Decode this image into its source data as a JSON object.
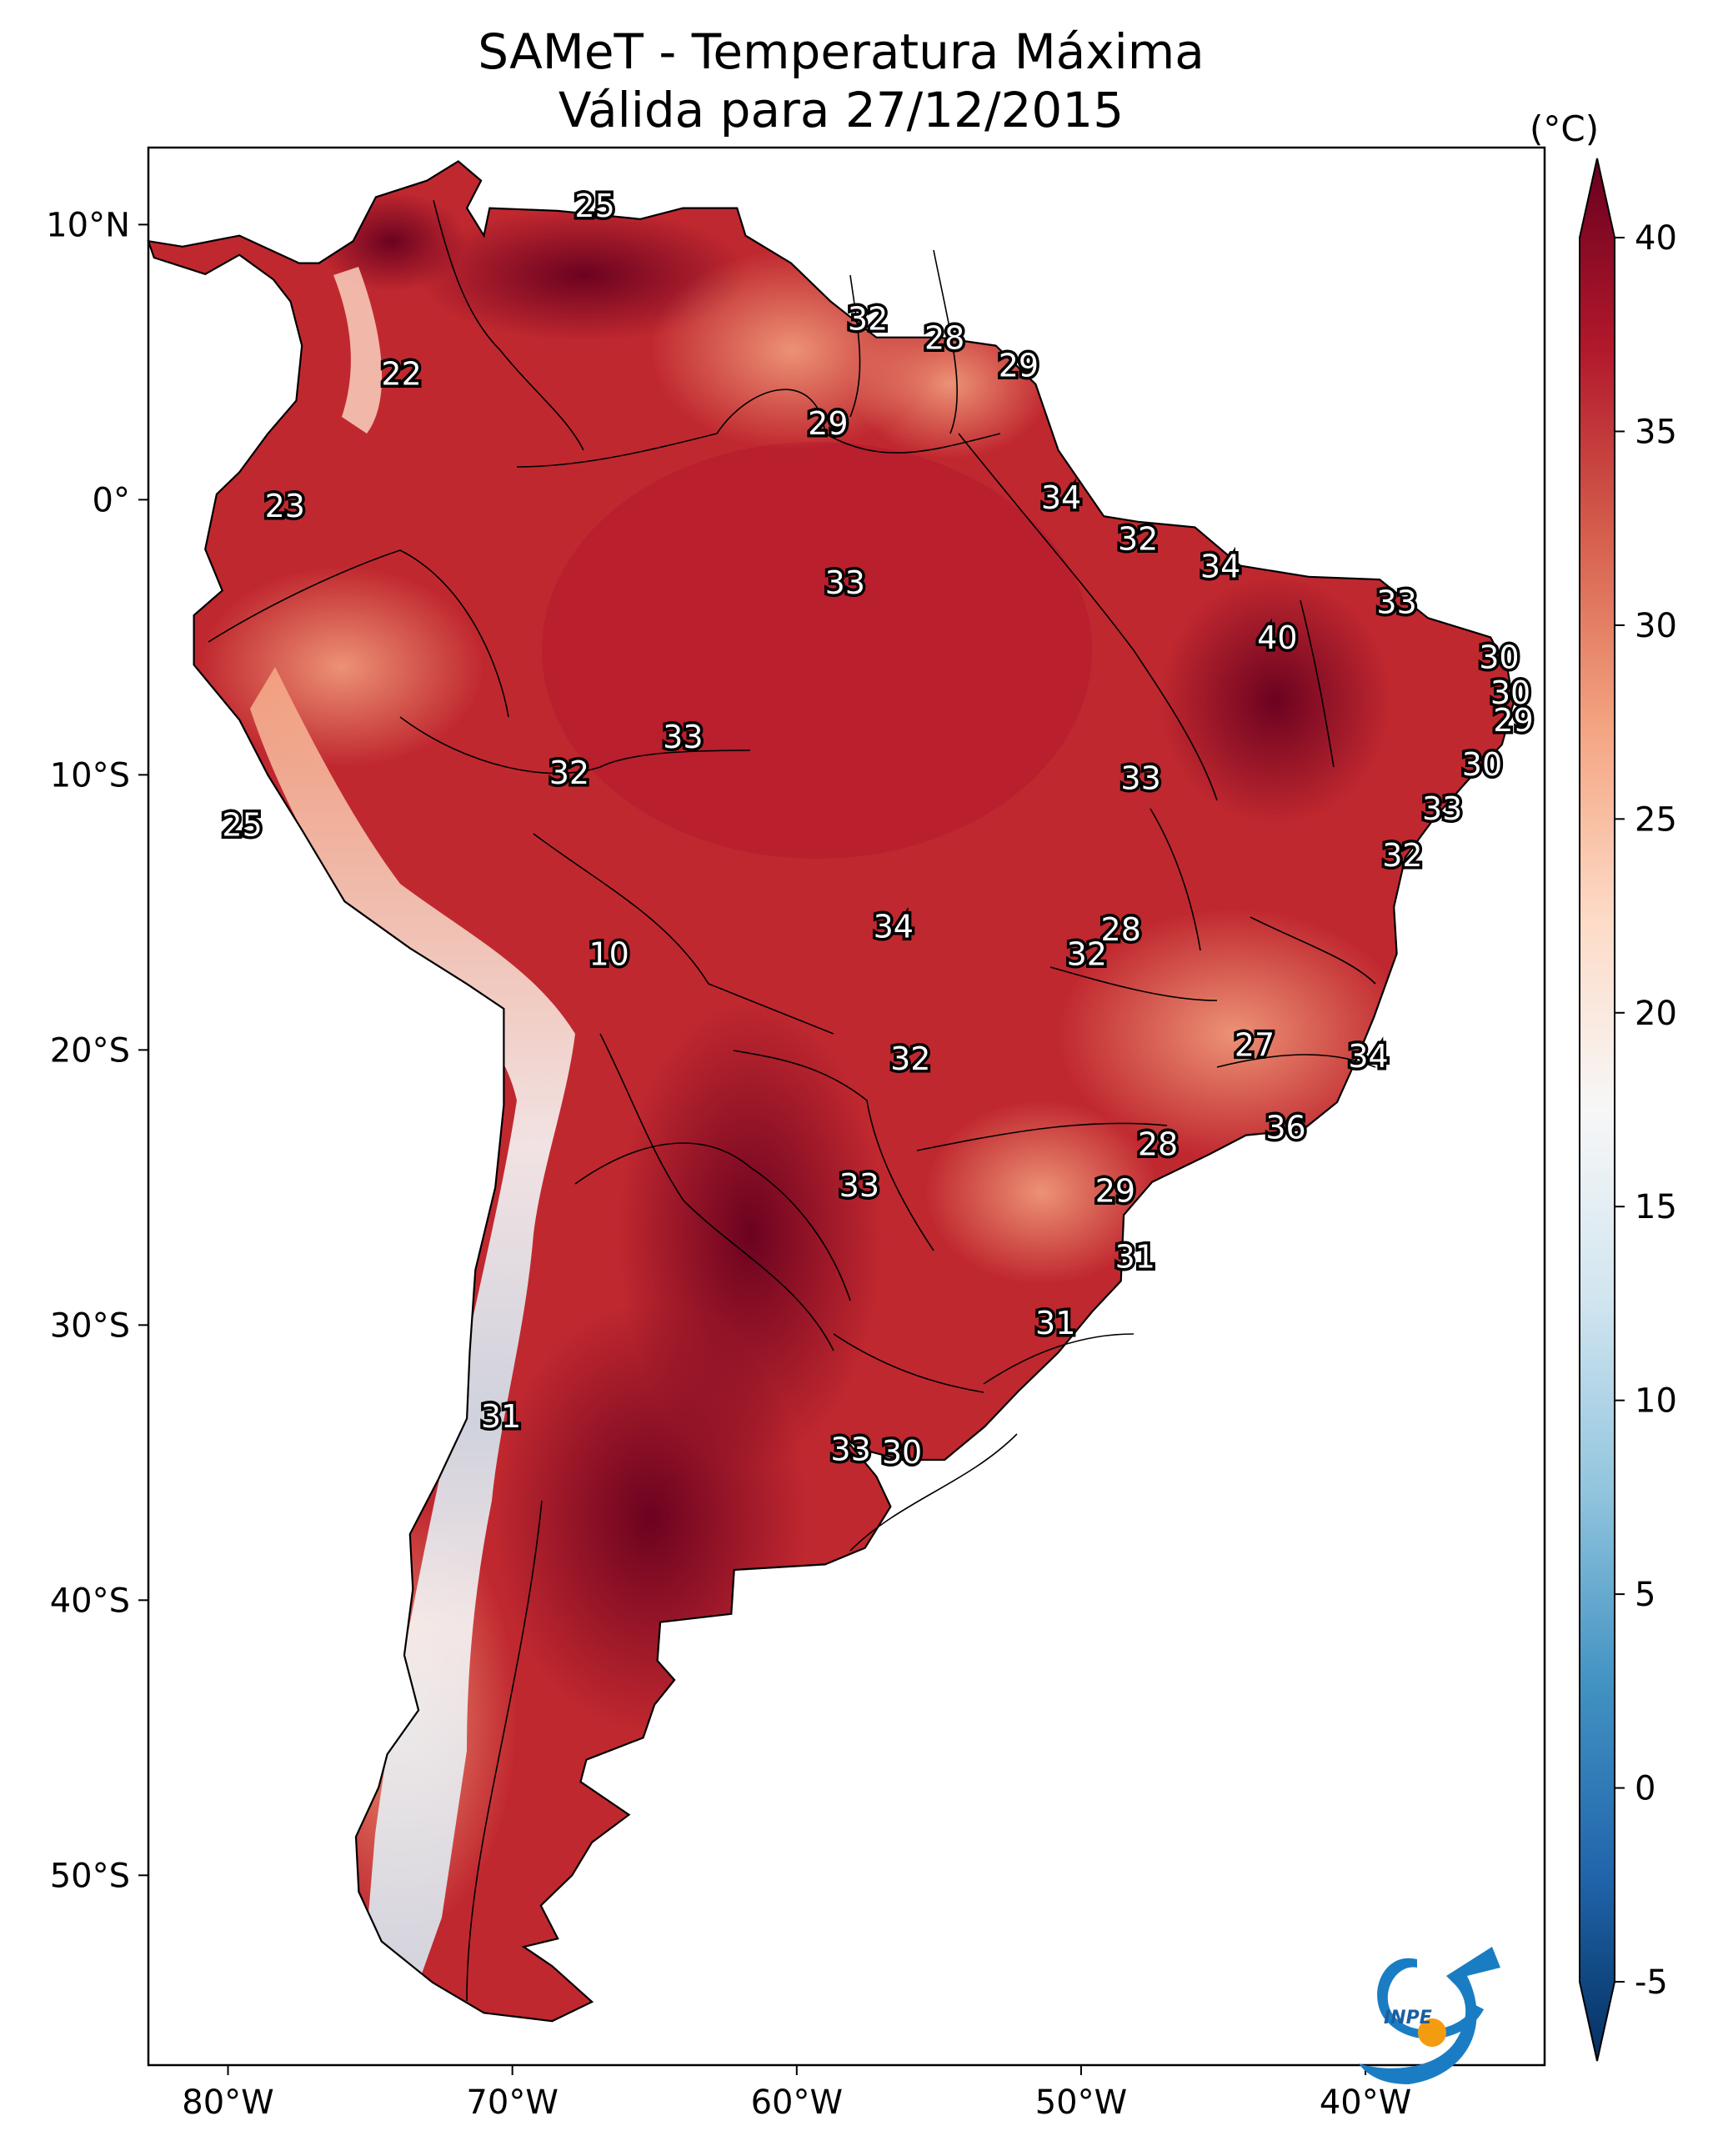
{
  "title": {
    "line1": "SAMeT - Temperatura Máxima",
    "line2": "Válida para 27/12/2015"
  },
  "map": {
    "lon_range": [
      -82.8,
      -33.7
    ],
    "lat_range": [
      -56.9,
      12.8
    ],
    "lon_ticks": [
      {
        "value": -80,
        "label": "80°W"
      },
      {
        "value": -70,
        "label": "70°W"
      },
      {
        "value": -60,
        "label": "60°W"
      },
      {
        "value": -50,
        "label": "50°W"
      },
      {
        "value": -40,
        "label": "40°W"
      }
    ],
    "lat_ticks": [
      {
        "value": 10,
        "label": "10°N"
      },
      {
        "value": 0,
        "label": "0°"
      },
      {
        "value": -10,
        "label": "10°S"
      },
      {
        "value": -20,
        "label": "20°S"
      },
      {
        "value": -30,
        "label": "30°S"
      },
      {
        "value": -40,
        "label": "40°S"
      },
      {
        "value": -50,
        "label": "50°S"
      }
    ],
    "labels": [
      {
        "lon": -67.1,
        "lat": 10.6,
        "text": "25"
      },
      {
        "lon": -57.5,
        "lat": 6.5,
        "text": "32"
      },
      {
        "lon": -54.8,
        "lat": 5.8,
        "text": "28"
      },
      {
        "lon": -52.2,
        "lat": 4.8,
        "text": "29"
      },
      {
        "lon": -73.9,
        "lat": 4.5,
        "text": "22"
      },
      {
        "lon": -58.9,
        "lat": 2.7,
        "text": "29"
      },
      {
        "lon": -50.7,
        "lat": 0.0,
        "text": "34"
      },
      {
        "lon": -78.0,
        "lat": -0.3,
        "text": "23"
      },
      {
        "lon": -48.0,
        "lat": -1.5,
        "text": "32"
      },
      {
        "lon": -45.1,
        "lat": -2.5,
        "text": "34"
      },
      {
        "lon": -38.9,
        "lat": -3.8,
        "text": "33"
      },
      {
        "lon": -58.3,
        "lat": -3.1,
        "text": "33"
      },
      {
        "lon": -43.1,
        "lat": -5.1,
        "text": "40"
      },
      {
        "lon": -35.3,
        "lat": -5.8,
        "text": "30"
      },
      {
        "lon": -34.9,
        "lat": -7.1,
        "text": "30"
      },
      {
        "lon": -34.8,
        "lat": -8.1,
        "text": "29"
      },
      {
        "lon": -35.9,
        "lat": -9.7,
        "text": "30"
      },
      {
        "lon": -64.0,
        "lat": -8.7,
        "text": "33"
      },
      {
        "lon": -68.0,
        "lat": -10.0,
        "text": "32"
      },
      {
        "lon": -47.9,
        "lat": -10.2,
        "text": "33"
      },
      {
        "lon": -37.3,
        "lat": -11.3,
        "text": "33"
      },
      {
        "lon": -79.5,
        "lat": -11.9,
        "text": "25"
      },
      {
        "lon": -38.7,
        "lat": -13.0,
        "text": "32"
      },
      {
        "lon": -66.6,
        "lat": -16.6,
        "text": "10"
      },
      {
        "lon": -56.6,
        "lat": -15.6,
        "text": "34"
      },
      {
        "lon": -48.6,
        "lat": -15.7,
        "text": "28"
      },
      {
        "lon": -49.8,
        "lat": -16.6,
        "text": "32"
      },
      {
        "lon": -43.9,
        "lat": -19.9,
        "text": "27"
      },
      {
        "lon": -39.9,
        "lat": -20.3,
        "text": "34"
      },
      {
        "lon": -56.0,
        "lat": -20.4,
        "text": "32"
      },
      {
        "lon": -42.8,
        "lat": -22.9,
        "text": "36"
      },
      {
        "lon": -47.3,
        "lat": -23.5,
        "text": "28"
      },
      {
        "lon": -57.8,
        "lat": -25.0,
        "text": "33"
      },
      {
        "lon": -48.8,
        "lat": -25.2,
        "text": "29"
      },
      {
        "lon": -48.1,
        "lat": -27.6,
        "text": "31"
      },
      {
        "lon": -50.9,
        "lat": -30.0,
        "text": "31"
      },
      {
        "lon": -70.4,
        "lat": -33.4,
        "text": "31"
      },
      {
        "lon": -58.1,
        "lat": -34.6,
        "text": "33"
      },
      {
        "lon": -56.3,
        "lat": -34.7,
        "text": "30"
      }
    ]
  },
  "colorbar": {
    "unit": "(°C)",
    "min": -5,
    "max": 40,
    "ticks": [
      {
        "value": 40,
        "label": "40"
      },
      {
        "value": 35,
        "label": "35"
      },
      {
        "value": 30,
        "label": "30"
      },
      {
        "value": 25,
        "label": "25"
      },
      {
        "value": 20,
        "label": "20"
      },
      {
        "value": 15,
        "label": "15"
      },
      {
        "value": 10,
        "label": "10"
      },
      {
        "value": 5,
        "label": "5"
      },
      {
        "value": 0,
        "label": "0"
      },
      {
        "value": -5,
        "label": "-5"
      }
    ],
    "colors": [
      "#053061",
      "#2166ac",
      "#4393c3",
      "#92c5de",
      "#d1e5f0",
      "#f7f7f7",
      "#fddbc7",
      "#f4a582",
      "#d6604d",
      "#b2182b",
      "#67001f"
    ]
  },
  "logo": {
    "text": "INPE",
    "colors": [
      "#1a7dc4",
      "#f39c12"
    ]
  }
}
